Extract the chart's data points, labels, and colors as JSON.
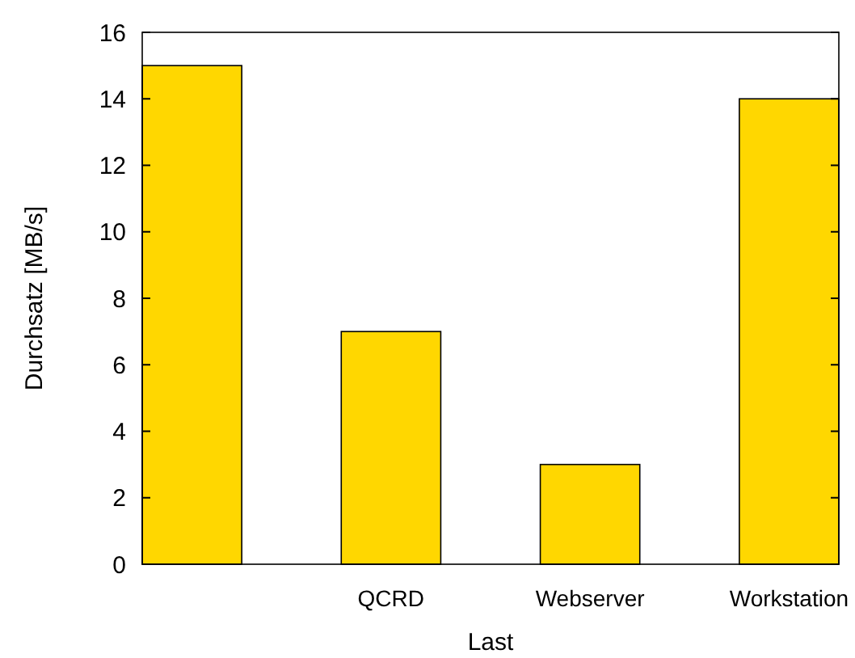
{
  "chart_data": {
    "type": "bar",
    "xlabel": "Last",
    "ylabel": "Durchsatz [MB/s]",
    "categories": [
      null,
      "QCRD",
      "Webserver",
      "Workstation"
    ],
    "values": [
      15,
      7,
      3,
      14
    ],
    "color": "#ffd700",
    "ylim": [
      0,
      16
    ],
    "yticks": [
      0,
      2,
      4,
      6,
      8,
      10,
      12,
      14,
      16
    ],
    "grid": false
  }
}
